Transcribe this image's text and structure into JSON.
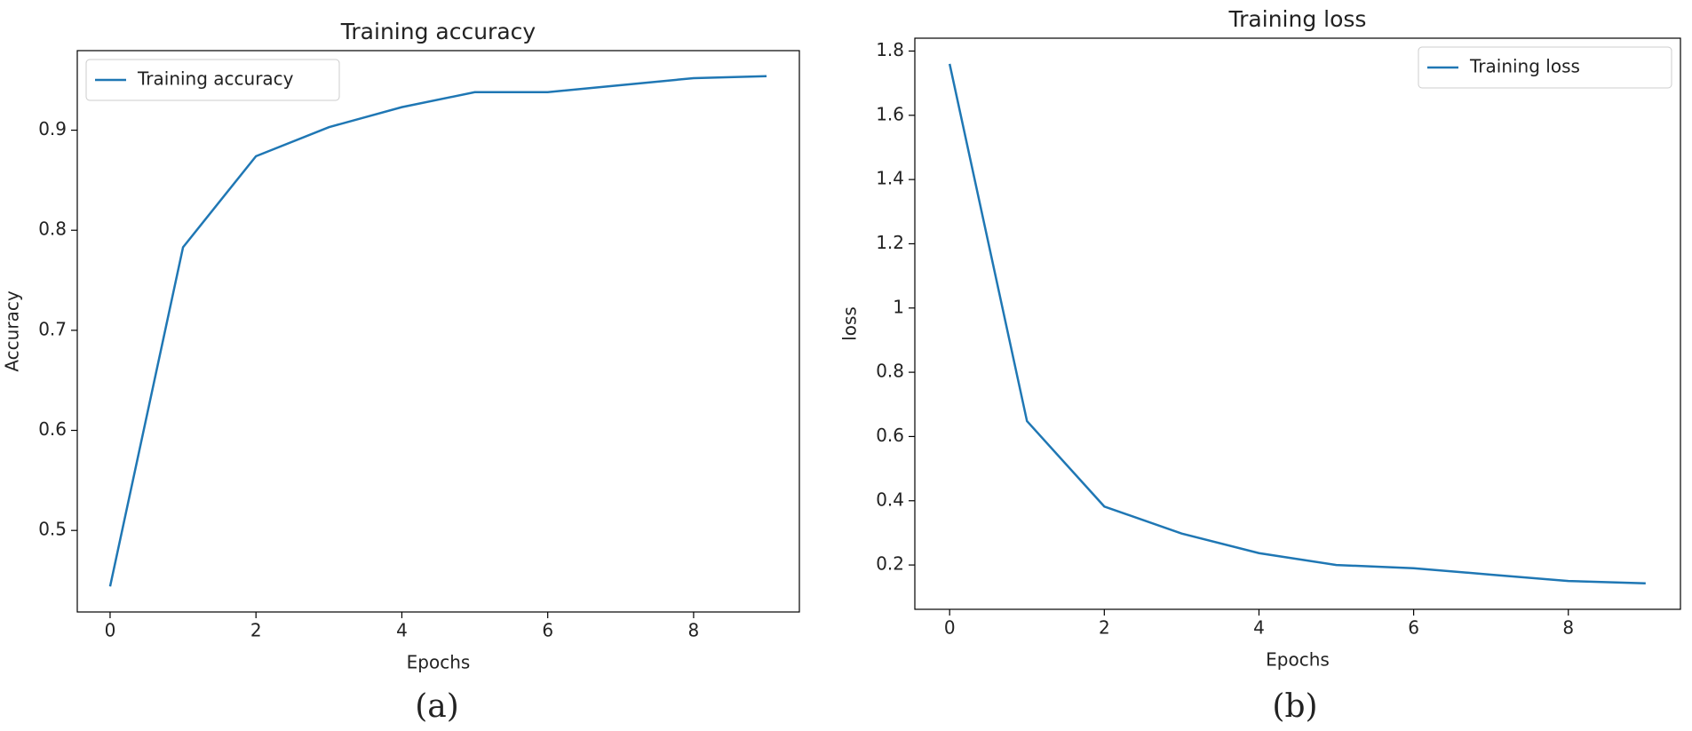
{
  "chart_data": [
    {
      "type": "line",
      "title": "Training accuracy",
      "xlabel": "Epochs",
      "ylabel": "Accuracy",
      "caption": "(a)",
      "x": [
        0,
        1,
        2,
        3,
        4,
        5,
        6,
        7,
        8,
        9
      ],
      "series": [
        {
          "name": "Training accuracy",
          "color": "#1f77b4",
          "values": [
            0.444,
            0.783,
            0.874,
            0.903,
            0.923,
            0.938,
            0.938,
            0.945,
            0.952,
            0.954
          ]
        }
      ],
      "xlim": [
        -0.45,
        9.45
      ],
      "xticks": [
        0,
        2,
        4,
        6,
        8
      ],
      "ylim": [
        0.4185,
        0.9795
      ],
      "yticks": [
        0.5,
        0.6,
        0.7,
        0.8,
        0.9
      ],
      "legend": "upper left"
    },
    {
      "type": "line",
      "title": "Training loss",
      "xlabel": "Epochs",
      "ylabel": "loss",
      "caption": "(b)",
      "x": [
        0,
        1,
        2,
        3,
        4,
        5,
        6,
        7,
        8,
        9
      ],
      "series": [
        {
          "name": "Training loss",
          "color": "#1f77b4",
          "values": [
            1.76,
            0.648,
            0.382,
            0.298,
            0.237,
            0.2,
            0.19,
            0.17,
            0.15,
            0.143
          ]
        }
      ],
      "xlim": [
        -0.45,
        9.45
      ],
      "xticks": [
        0,
        2,
        4,
        6,
        8
      ],
      "ylim": [
        0.062,
        1.84
      ],
      "yticks": [
        0.2,
        0.4,
        0.6,
        0.8,
        1.0,
        1.2,
        1.4,
        1.6,
        1.8
      ],
      "legend": "upper right"
    }
  ]
}
